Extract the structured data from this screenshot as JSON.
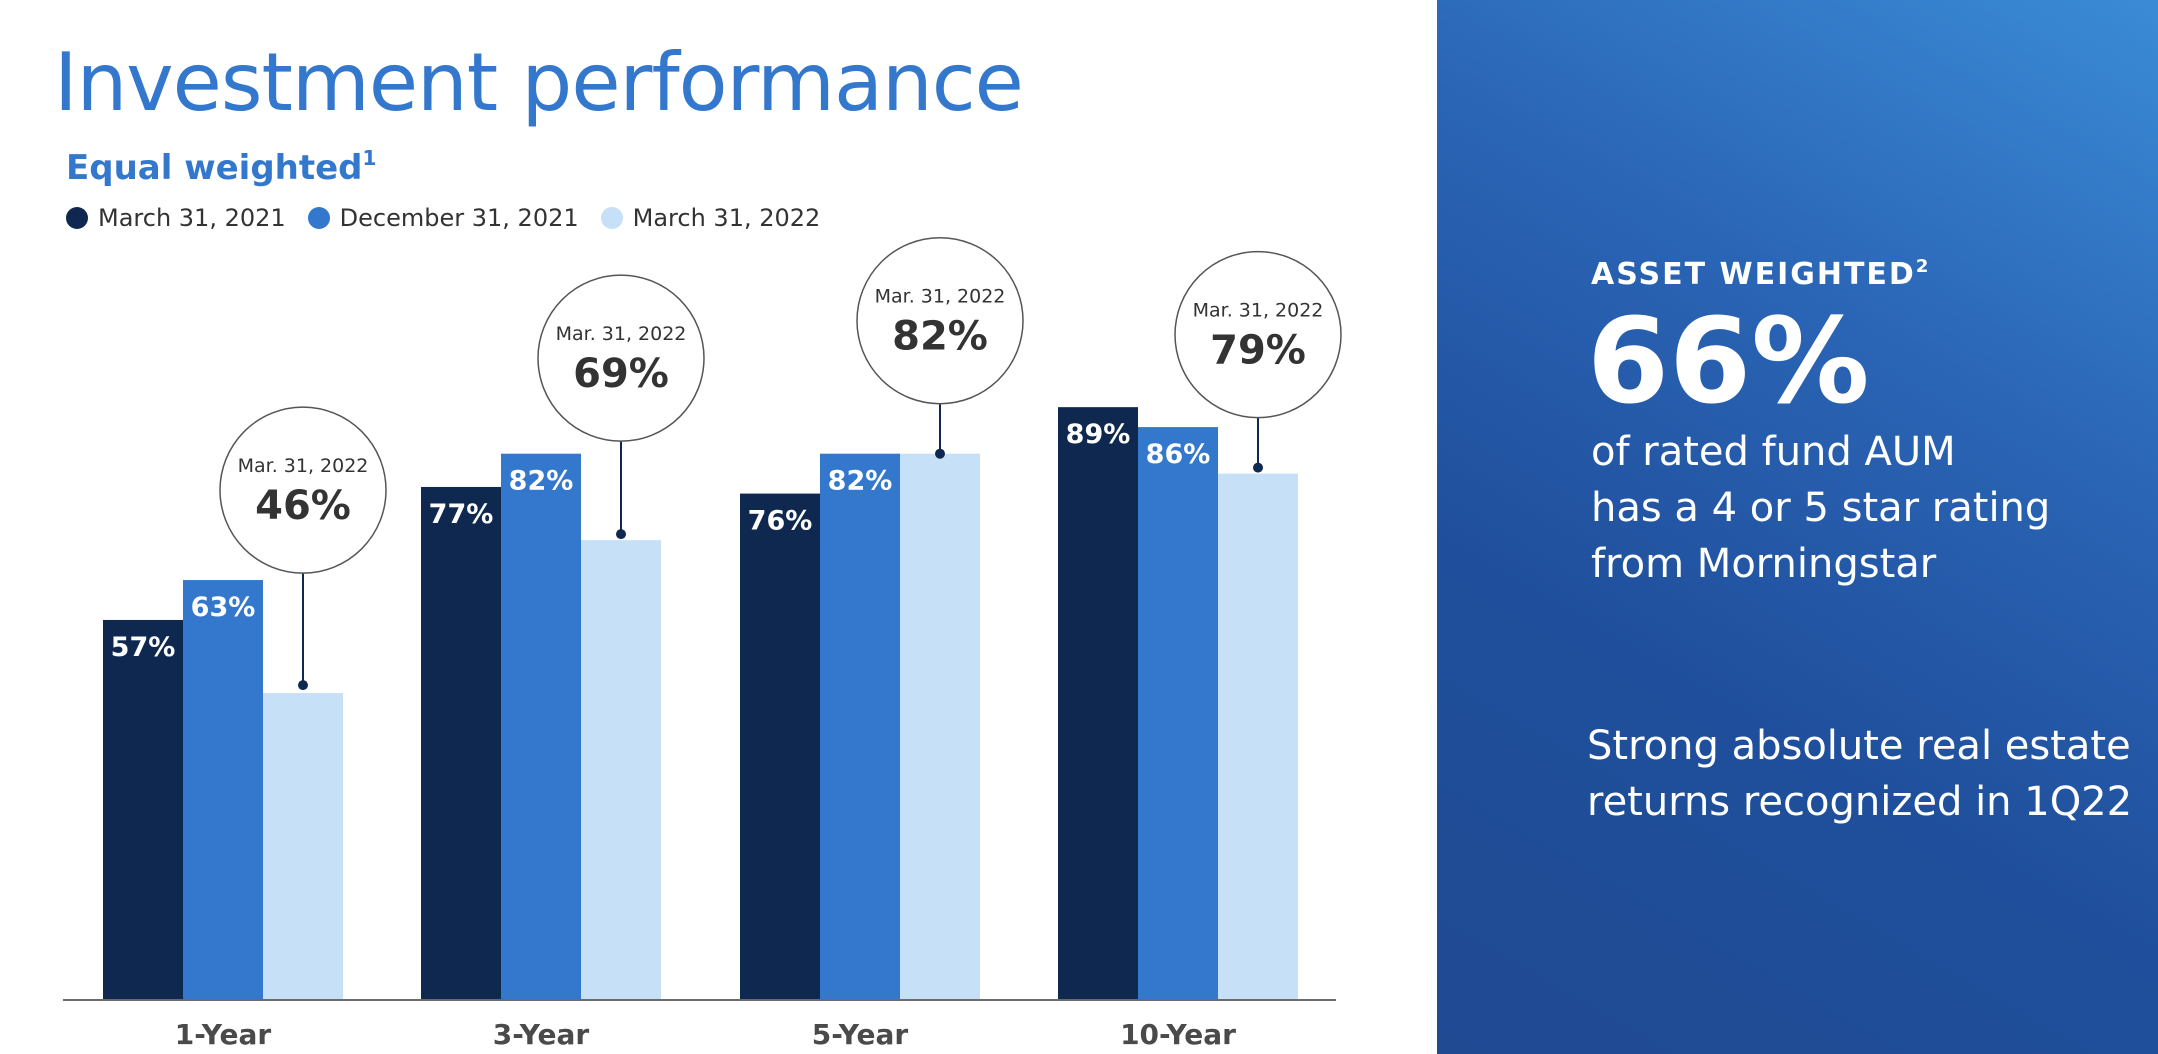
{
  "title": "Investment performance",
  "subtitle": "Equal weighted",
  "subtitle_sup": "1",
  "legend": [
    {
      "label": "March 31, 2021",
      "color": "#0f2850"
    },
    {
      "label": "December 31, 2021",
      "color": "#3378cc"
    },
    {
      "label": "March 31, 2022",
      "color": "#c5e0f7"
    }
  ],
  "chart_data": {
    "type": "bar",
    "categories": [
      "1-Year",
      "3-Year",
      "5-Year",
      "10-Year"
    ],
    "series": [
      {
        "name": "March 31, 2021",
        "values": [
          57,
          77,
          76,
          89
        ],
        "labels": [
          "57%",
          "77%",
          "76%",
          "89%"
        ],
        "color": "#0f2850"
      },
      {
        "name": "December 31, 2021",
        "values": [
          63,
          82,
          82,
          86
        ],
        "labels": [
          "63%",
          "82%",
          "82%",
          "86%"
        ],
        "color": "#3378cc"
      },
      {
        "name": "March 31, 2022",
        "values": [
          46,
          69,
          82,
          79
        ],
        "labels": [
          "46%",
          "69%",
          "82%",
          "79%"
        ],
        "color": "#c5e0f7"
      }
    ],
    "callouts": [
      {
        "caption": "Mar. 31, 2022",
        "value": "46%"
      },
      {
        "caption": "Mar. 31, 2022",
        "value": "69%"
      },
      {
        "caption": "Mar. 31, 2022",
        "value": "82%"
      },
      {
        "caption": "Mar. 31, 2022",
        "value": "79%"
      }
    ],
    "ylim": [
      0,
      100
    ],
    "grid": false,
    "legend_placement": "top-left"
  },
  "panel": {
    "kicker": "ASSET WEIGHTED",
    "kicker_sup": "2",
    "big_value": "66%",
    "description_lines": [
      "of rated fund AUM",
      "has a 4 or 5 star rating",
      "from Morningstar"
    ],
    "note_lines": [
      "Strong absolute real estate",
      "returns recognized in 1Q22"
    ]
  }
}
